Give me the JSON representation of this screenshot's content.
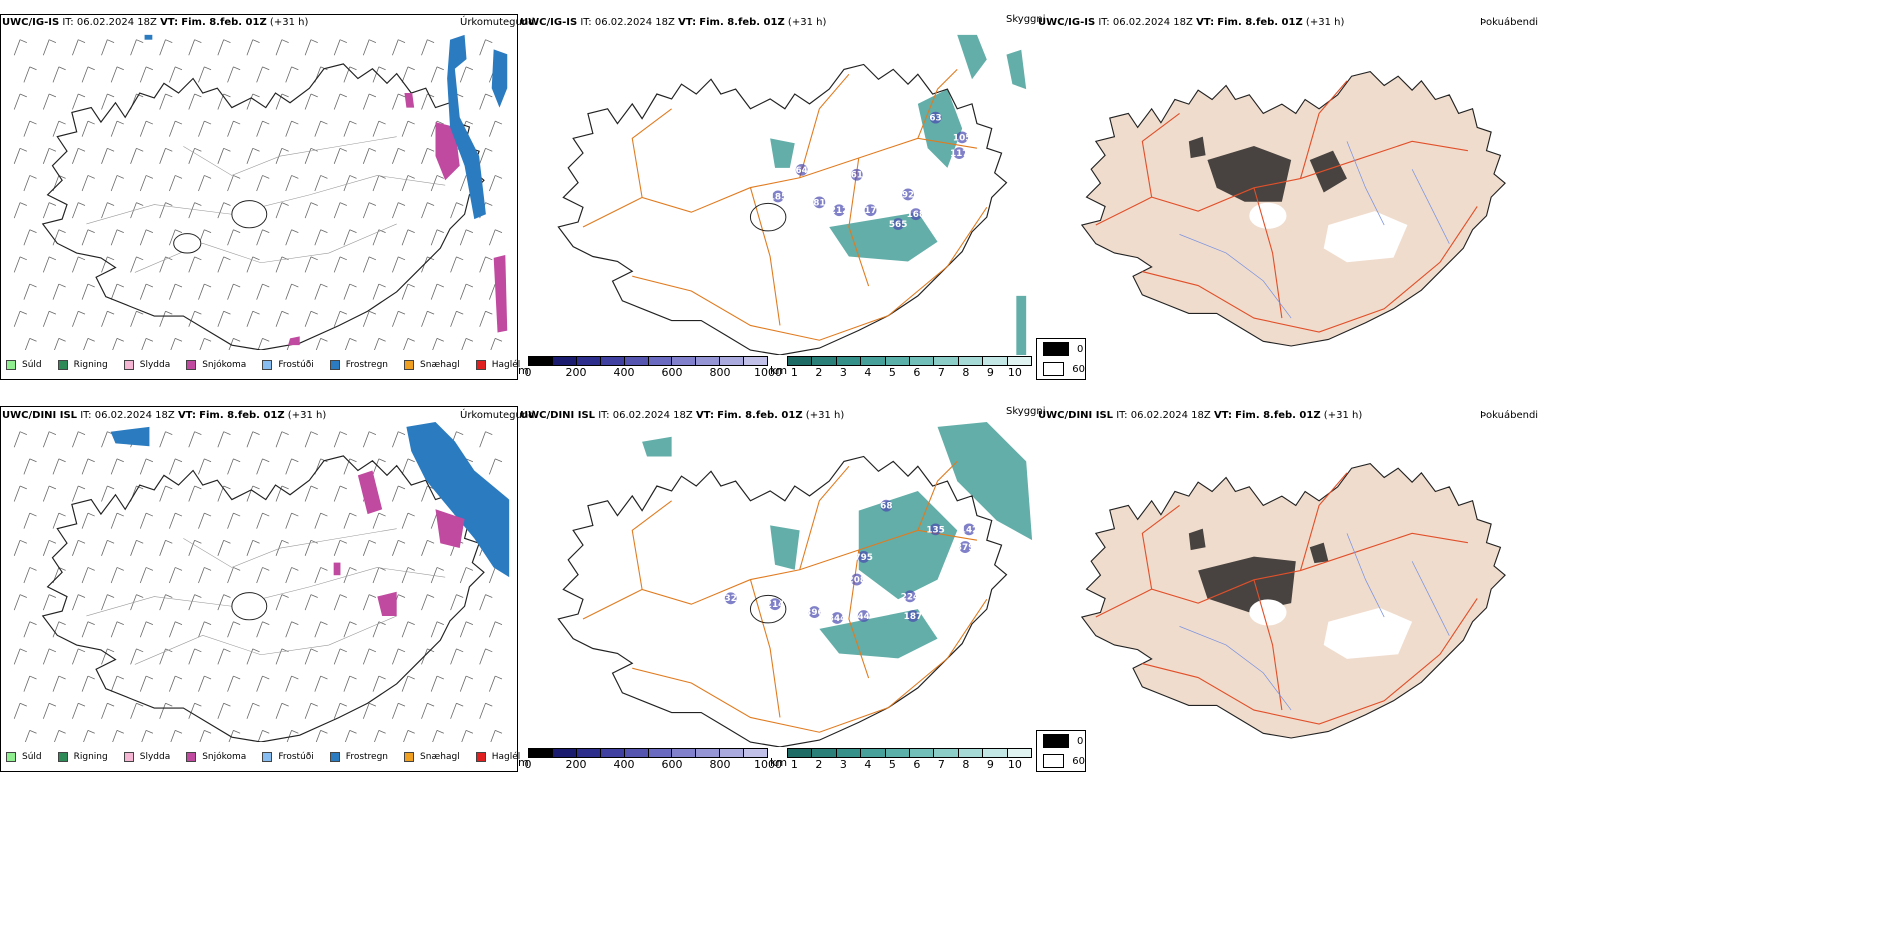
{
  "rows": [
    {
      "model": "UWC/IG-IS",
      "init_label": "IT:",
      "init_time": "06.02.2024 18Z",
      "valid_label": "VT:",
      "valid_time": "Fim. 8.feb. 01Z",
      "lead": "(+31 h)",
      "cloud_numbers": [
        "63",
        "105",
        "117",
        "64",
        "61",
        "185",
        "81",
        "212",
        "17",
        "92",
        "168",
        "565"
      ]
    },
    {
      "model": "UWC/DINI ISL",
      "init_label": "IT:",
      "init_time": "06.02.2024 18Z",
      "valid_label": "VT:",
      "valid_time": "Fim. 8.feb. 01Z",
      "lead": "(+31 h)",
      "cloud_numbers": [
        "68",
        "135",
        "142",
        "379",
        "795",
        "208",
        "214",
        "396",
        "344",
        "44",
        "224",
        "187",
        "32"
      ]
    }
  ],
  "panel_titles": {
    "precip": "Úrkomutegund",
    "cloud": "Skyggni",
    "fog": "Þokuábendi"
  },
  "precip_legend": [
    {
      "label": "Súld",
      "color": "#90ee90"
    },
    {
      "label": "Rigning",
      "color": "#2e8b57"
    },
    {
      "label": "Slydda",
      "color": "#f4b6d2"
    },
    {
      "label": "Snjókoma",
      "color": "#c04a9f"
    },
    {
      "label": "Frostúði",
      "color": "#87bdf0"
    },
    {
      "label": "Frostregn",
      "color": "#2b7bc0"
    },
    {
      "label": "Snæhagl",
      "color": "#f0a020"
    },
    {
      "label": "Haglél",
      "color": "#e02020"
    }
  ],
  "cloud_base_scale": {
    "unit": "m",
    "ticks": [
      "0",
      "200",
      "400",
      "600",
      "800",
      "1000"
    ],
    "colors": [
      "#000000",
      "#1a1a6e",
      "#2d2d8c",
      "#4040a0",
      "#5555b0",
      "#6a6ac0",
      "#8080cc",
      "#9595d6",
      "#aaaadf",
      "#c0c0e8"
    ]
  },
  "visibility_scale": {
    "unit": "km",
    "ticks": [
      "1",
      "2",
      "3",
      "4",
      "5",
      "6",
      "7",
      "8",
      "9",
      "10"
    ],
    "colors": [
      "#1e6b66",
      "#2a7f79",
      "#35908a",
      "#48a09a",
      "#5cb0aa",
      "#72bfba",
      "#8ccdc8",
      "#a6dad6",
      "#c2e7e4",
      "#e0f3f1"
    ]
  },
  "fog_scale": {
    "values": [
      "0",
      "60"
    ],
    "colors": [
      "#000000",
      "#ffffff"
    ]
  }
}
